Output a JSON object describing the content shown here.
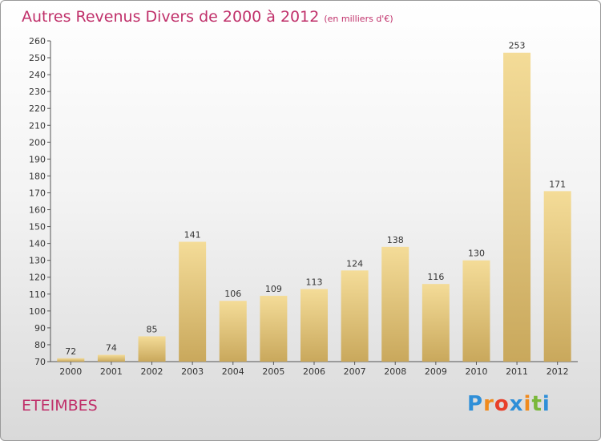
{
  "title": {
    "main": "Autres Revenus Divers de 2000 à 2012",
    "unit": "(en milliers d'€)"
  },
  "place": "ETEIMBES",
  "logo": {
    "letters": [
      "P",
      "r",
      "o",
      "x",
      "i",
      "t",
      "i"
    ],
    "colors": [
      "#2f8fd8",
      "#f08a1c",
      "#e8402a",
      "#2f8fd8",
      "#f08a1c",
      "#7ab83a",
      "#2f8fd8"
    ]
  },
  "chart_data": {
    "type": "bar",
    "categories": [
      "2000",
      "2001",
      "2002",
      "2003",
      "2004",
      "2005",
      "2006",
      "2007",
      "2008",
      "2009",
      "2010",
      "2011",
      "2012"
    ],
    "values": [
      72,
      74,
      85,
      141,
      106,
      109,
      113,
      124,
      138,
      116,
      130,
      253,
      171
    ],
    "ylim": [
      70,
      260
    ],
    "yticks": [
      70,
      80,
      90,
      100,
      110,
      120,
      130,
      140,
      150,
      160,
      170,
      180,
      190,
      200,
      210,
      220,
      230,
      240,
      250,
      260
    ],
    "grid": false,
    "colors": {
      "bar_top": "#f4dc98",
      "bar_bottom": "#c9a85c",
      "text": "#333333",
      "axis": "#555555"
    }
  }
}
